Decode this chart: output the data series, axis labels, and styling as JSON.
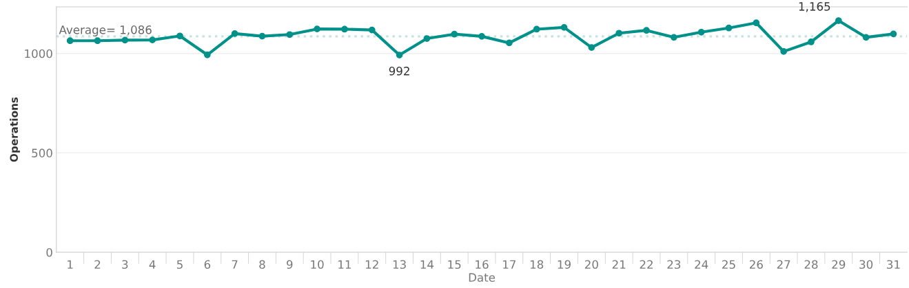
{
  "chart_data": {
    "type": "line",
    "xlabel": "Date",
    "ylabel": "Operations",
    "categories": [
      "1",
      "2",
      "3",
      "4",
      "5",
      "6",
      "7",
      "8",
      "9",
      "10",
      "11",
      "12",
      "13",
      "14",
      "15",
      "16",
      "17",
      "18",
      "19",
      "20",
      "21",
      "22",
      "23",
      "24",
      "25",
      "26",
      "27",
      "28",
      "29",
      "30",
      "31"
    ],
    "series": [
      {
        "color": "#00918a",
        "values": [
          1064,
          1064,
          1067,
          1068,
          1088,
          993,
          1100,
          1087,
          1095,
          1123,
          1122,
          1118,
          992,
          1075,
          1097,
          1086,
          1053,
          1122,
          1131,
          1030,
          1102,
          1116,
          1081,
          1107,
          1128,
          1154,
          1010,
          1058,
          1165,
          1081,
          1098
        ]
      }
    ],
    "ylim": [
      0,
      1234
    ],
    "yticks": [
      0,
      500,
      1000
    ],
    "grid": "y",
    "marker": "circle",
    "line_style": "solid",
    "legend": false,
    "ref_lines": [
      {
        "axis": "y",
        "value": 1086,
        "label": "Average= 1,086",
        "color": "#c5e3df",
        "line_style": "dotted"
      }
    ],
    "annotations": [
      {
        "text": "992",
        "x": "13",
        "y": 992
      },
      {
        "text": "1,165",
        "x": "29",
        "y": 1165
      }
    ]
  }
}
